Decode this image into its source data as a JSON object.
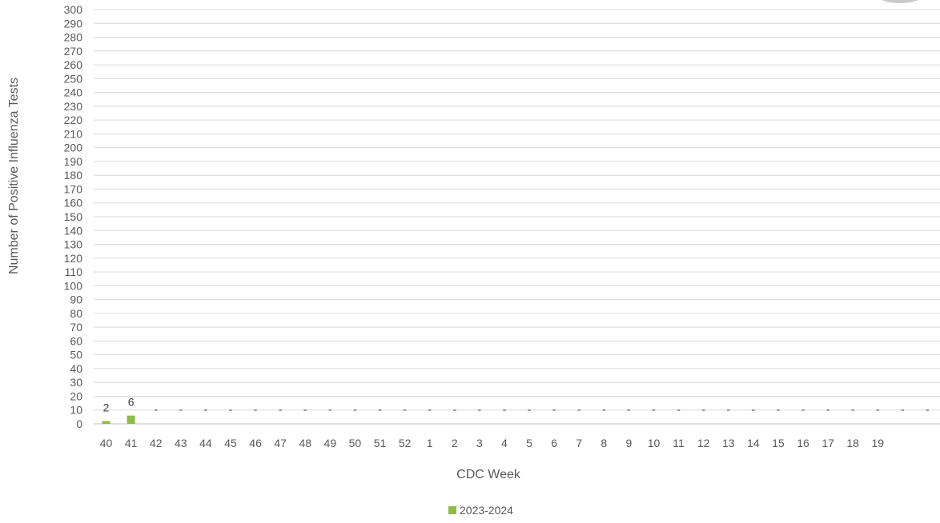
{
  "chart_data": {
    "type": "bar",
    "title": "",
    "xlabel": "CDC Week",
    "ylabel": "Number of Positive Influenza Tests",
    "ylim": [
      0,
      300
    ],
    "ytick_step": 10,
    "grid": true,
    "legend_position": "bottom-center",
    "categories": [
      "40",
      "41",
      "42",
      "43",
      "44",
      "45",
      "46",
      "47",
      "48",
      "49",
      "50",
      "51",
      "52",
      "1",
      "2",
      "3",
      "4",
      "5",
      "6",
      "7",
      "8",
      "9",
      "10",
      "11",
      "12",
      "13",
      "14",
      "15",
      "16",
      "17",
      "18",
      "19"
    ],
    "empty_slots_after_categories": 2,
    "series": [
      {
        "name": "2023-2024",
        "color": "#8fbc45",
        "values": [
          2,
          6,
          null,
          null,
          null,
          null,
          null,
          null,
          null,
          null,
          null,
          null,
          null,
          null,
          null,
          null,
          null,
          null,
          null,
          null,
          null,
          null,
          null,
          null,
          null,
          null,
          null,
          null,
          null,
          null,
          null,
          null
        ],
        "data_labels": [
          "2",
          "6",
          "",
          "",
          "",
          "",
          "",
          "",
          "",
          "",
          "",
          "",
          "",
          "",
          "",
          "",
          "",
          "",
          "",
          "",
          "",
          "",
          "",
          "",
          "",
          "",
          "",
          "",
          "",
          "",
          "",
          ""
        ],
        "placeholder_mark": "-"
      }
    ]
  },
  "badge_color": "#f2e200"
}
